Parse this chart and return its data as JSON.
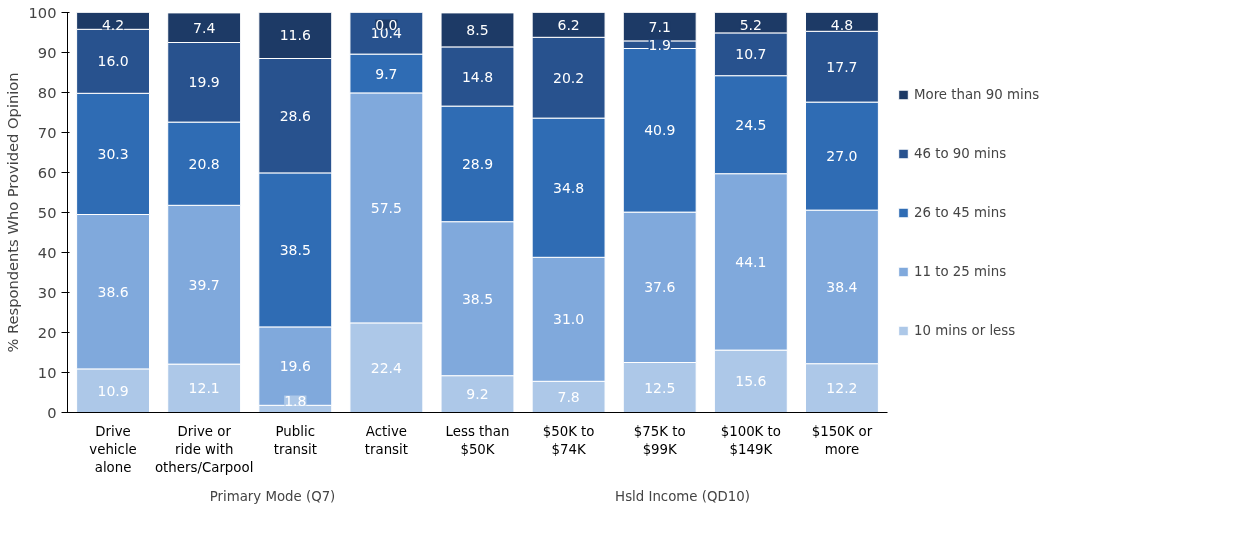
{
  "chart_data": {
    "type": "bar",
    "stacked": true,
    "ylabel": "% Respondents Who Provided Opinion",
    "categories": [
      "Drive vehicle alone",
      "Drive or ride with others/Carpool",
      "Public transit",
      "Active transit",
      "Less than $50K",
      "$50K to $74K",
      "$75K to $99K",
      "$100K to $149K",
      "$150K or more"
    ],
    "series": [
      {
        "name": "10 mins or less",
        "color": "#adc8e8",
        "values": [
          10.9,
          12.1,
          1.8,
          22.4,
          9.2,
          7.8,
          12.5,
          15.6,
          12.2
        ],
        "value_labels": [
          "10.9",
          "12.1",
          "1.8",
          "22.4",
          "9.2",
          "7.8",
          "12.5",
          "15.6",
          "12.2"
        ]
      },
      {
        "name": "11 to 25 mins",
        "color": "#80a9dc",
        "values": [
          38.6,
          39.7,
          19.6,
          57.5,
          38.5,
          31.0,
          37.6,
          44.1,
          38.4
        ],
        "value_labels": [
          "38.6",
          "39.7",
          "19.6",
          "57.5",
          "38.5",
          "31.0",
          "37.6",
          "44.1",
          "38.4"
        ]
      },
      {
        "name": "26 to 45 mins",
        "color": "#2f6cb4",
        "values": [
          30.3,
          20.8,
          38.5,
          9.7,
          28.9,
          34.8,
          40.9,
          24.5,
          27.0
        ],
        "value_labels": [
          "30.3",
          "20.8",
          "38.5",
          "9.7",
          "28.9",
          "34.8",
          "40.9",
          "24.5",
          "27.0"
        ]
      },
      {
        "name": "46 to 90 mins",
        "color": "#28528e",
        "values": [
          16.0,
          19.9,
          28.6,
          10.4,
          14.8,
          20.2,
          1.9,
          10.7,
          17.7
        ],
        "value_labels": [
          "16.0",
          "19.9",
          "28.6",
          "10.4",
          "14.8",
          "20.2",
          "1.9",
          "10.7",
          "17.7"
        ]
      },
      {
        "name": "More than 90 mins",
        "color": "#1d3a66",
        "values": [
          4.2,
          7.4,
          11.6,
          0.0,
          8.5,
          6.2,
          7.1,
          5.2,
          4.8
        ],
        "value_labels": [
          "4.2",
          "7.4",
          "11.6",
          "0.0",
          "8.5",
          "6.2",
          "7.1",
          "5.2",
          "4.8"
        ]
      }
    ],
    "ylim": [
      0,
      100
    ],
    "yticks": [
      0,
      10,
      20,
      30,
      40,
      50,
      60,
      70,
      80,
      90,
      100
    ],
    "grid": false,
    "legend": "right",
    "annotations": [
      "Primary Mode (Q7)",
      "Hsld Income (QD10)"
    ]
  }
}
